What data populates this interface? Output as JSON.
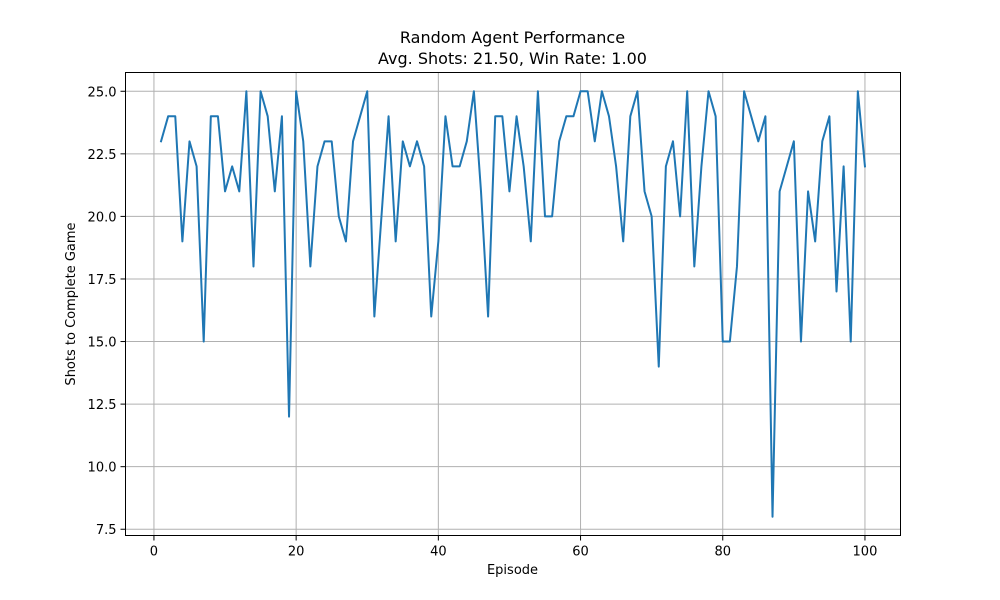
{
  "chart_data": {
    "type": "line",
    "title": "Random Agent Performance",
    "subtitle": "Avg. Shots: 21.50, Win Rate: 1.00",
    "xlabel": "Episode",
    "ylabel": "Shots to Complete Game",
    "xlim": [
      -4,
      105
    ],
    "ylim": [
      7.25,
      25.75
    ],
    "x_ticks": [
      0,
      20,
      40,
      60,
      80,
      100
    ],
    "y_ticks": [
      7.5,
      10.0,
      12.5,
      15.0,
      17.5,
      20.0,
      22.5,
      25.0
    ],
    "grid": true,
    "series": [
      {
        "color": "#1f77b4",
        "x": [
          1,
          2,
          3,
          4,
          5,
          6,
          7,
          8,
          9,
          10,
          11,
          12,
          13,
          14,
          15,
          16,
          17,
          18,
          19,
          20,
          21,
          22,
          23,
          24,
          25,
          26,
          27,
          28,
          29,
          30,
          31,
          32,
          33,
          34,
          35,
          36,
          37,
          38,
          39,
          40,
          41,
          42,
          43,
          44,
          45,
          46,
          47,
          48,
          49,
          50,
          51,
          52,
          53,
          54,
          55,
          56,
          57,
          58,
          59,
          60,
          61,
          62,
          63,
          64,
          65,
          66,
          67,
          68,
          69,
          70,
          71,
          72,
          73,
          74,
          75,
          76,
          77,
          78,
          79,
          80,
          81,
          82,
          83,
          84,
          85,
          86,
          87,
          88,
          89,
          90,
          91,
          92,
          93,
          94,
          95,
          96,
          97,
          98,
          99,
          100
        ],
        "values": [
          23,
          24,
          24,
          19,
          23,
          22,
          15,
          24,
          24,
          21,
          22,
          21,
          25,
          18,
          25,
          24,
          21,
          24,
          12,
          25,
          23,
          18,
          22,
          23,
          23,
          20,
          19,
          23,
          24,
          25,
          16,
          20,
          24,
          19,
          23,
          22,
          23,
          22,
          16,
          19,
          24,
          22,
          22,
          23,
          25,
          21,
          16,
          24,
          24,
          21,
          24,
          22,
          19,
          25,
          20,
          20,
          23,
          24,
          24,
          25,
          25,
          23,
          25,
          24,
          22,
          19,
          24,
          25,
          21,
          20,
          14,
          22,
          23,
          20,
          25,
          18,
          22,
          25,
          24,
          15,
          15,
          18,
          25,
          24,
          23,
          24,
          8,
          21,
          22,
          23,
          15,
          21,
          19,
          23,
          24,
          17,
          22,
          15,
          25,
          22
        ]
      }
    ]
  }
}
